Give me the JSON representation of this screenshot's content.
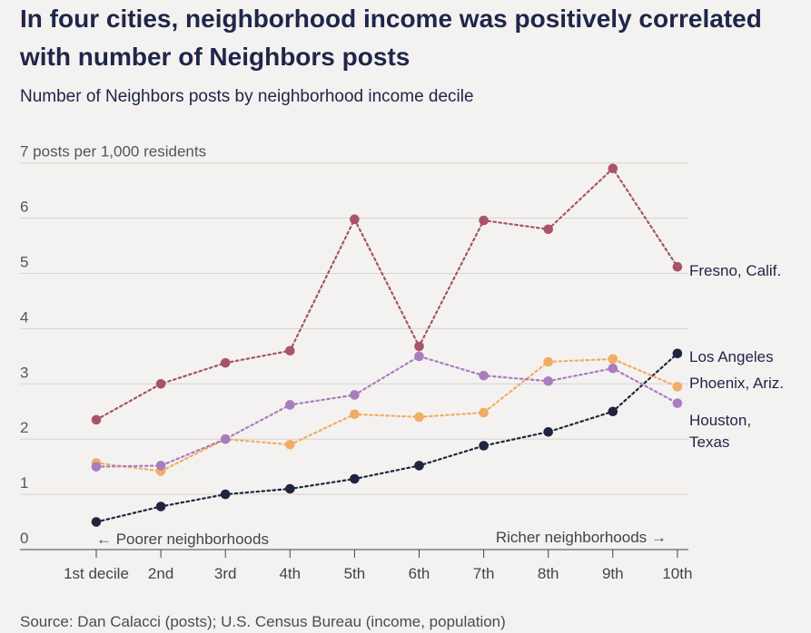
{
  "title": "In four cities, neighborhood income was positively correlated with number of Neighbors posts",
  "subtitle": "Number of Neighbors posts by neighborhood income decile",
  "source": "Source: Dan Calacci (posts); U.S. Census Bureau (income, population)",
  "chart_data": {
    "type": "line",
    "title": "In four cities, neighborhood income was positively correlated with number of Neighbors posts",
    "subtitle": "Number of Neighbors posts by neighborhood income decile",
    "ylabel": "posts per 1,000 residents",
    "ylim": [
      0,
      7
    ],
    "yticks": [
      "0",
      "1",
      "2",
      "3",
      "4",
      "5",
      "6",
      "7 posts per 1,000 residents"
    ],
    "categories": [
      "1st decile",
      "2nd",
      "3rd",
      "4th",
      "5th",
      "6th",
      "7th",
      "8th",
      "9th",
      "10th"
    ],
    "annotations": {
      "left": "← Poorer neighborhoods",
      "right": "Richer neighborhoods →"
    },
    "grid": true,
    "series": [
      {
        "name": "Fresno, Calif.",
        "color": "#a85468",
        "values": [
          2.35,
          3.0,
          3.38,
          3.6,
          5.98,
          3.68,
          5.96,
          5.8,
          6.9,
          5.12
        ]
      },
      {
        "name": "Los Angeles",
        "color": "#1f2540",
        "values": [
          0.5,
          0.78,
          1.0,
          1.1,
          1.28,
          1.52,
          1.88,
          2.13,
          2.5,
          3.55
        ]
      },
      {
        "name": "Phoenix, Ariz.",
        "color": "#f0ad65",
        "values": [
          1.57,
          1.42,
          2.0,
          1.9,
          2.45,
          2.4,
          2.48,
          3.4,
          3.45,
          2.95
        ]
      },
      {
        "name": "Houston, Texas",
        "color": "#a97cbf",
        "label_lines": [
          "Houston,",
          "Texas"
        ],
        "values": [
          1.5,
          1.52,
          2.0,
          2.62,
          2.8,
          3.5,
          3.15,
          3.05,
          3.28,
          2.65
        ]
      }
    ]
  }
}
